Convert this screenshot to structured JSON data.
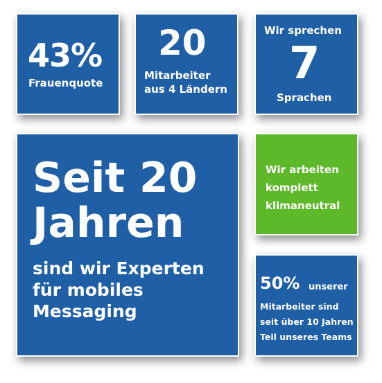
{
  "tiles": {
    "women_quota": {
      "value": "43%",
      "label": "Frauenquote"
    },
    "employees": {
      "value": "20",
      "line1": "Mitarbeiter",
      "line2": "aus 4 Ländern"
    },
    "languages": {
      "top": "Wir sprechen",
      "value": "7",
      "bottom": "Sprachen"
    },
    "experience": {
      "line1": "Seit 20",
      "line2": "Jahren",
      "sub1": "sind wir Experten",
      "sub2": "für mobiles",
      "sub3": "Messaging"
    },
    "climate": {
      "line1": "Wir arbeiten",
      "line2": "komplett",
      "line3": "klimaneutral"
    },
    "retention": {
      "value": "50%",
      "suffix": "unserer",
      "line1": "Mitarbeiter sind",
      "line2": "seit über 10 Jahren",
      "line3": "Teil unseres Teams"
    }
  },
  "colors": {
    "blue": "#1e5fa6",
    "green": "#5db82a"
  }
}
